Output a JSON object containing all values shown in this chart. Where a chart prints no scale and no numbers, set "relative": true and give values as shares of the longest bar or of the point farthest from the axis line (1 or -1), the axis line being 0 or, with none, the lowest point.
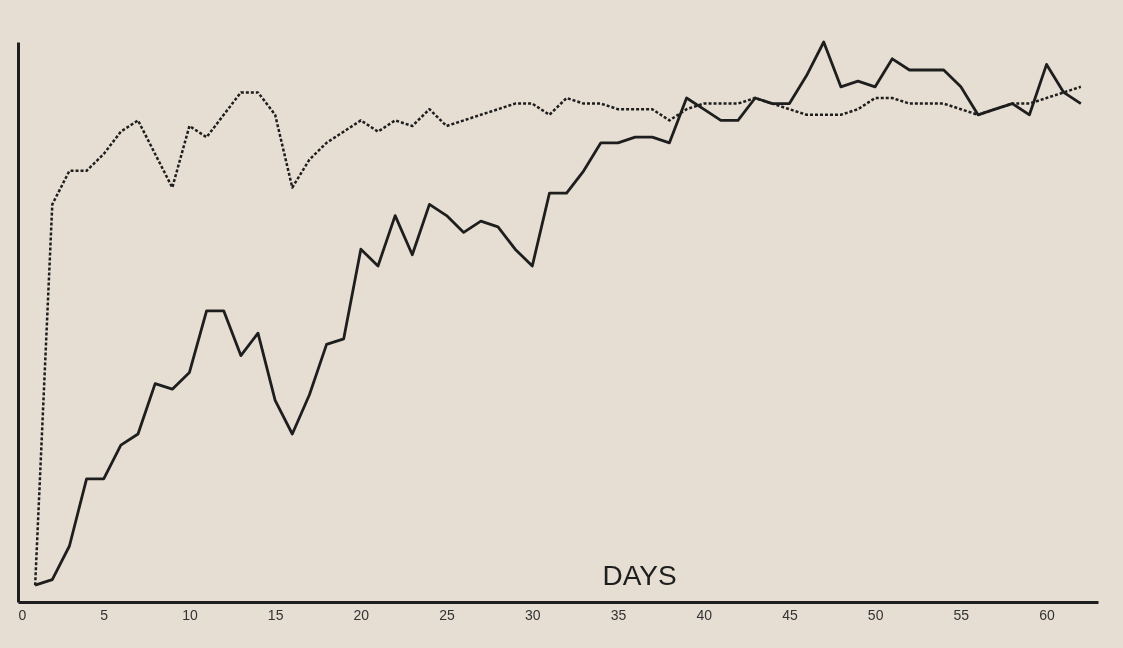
{
  "chart_data": {
    "type": "line",
    "xlabel": "DAYS",
    "relative": true,
    "tick_labels": "x",
    "grid": false,
    "marker": "none",
    "xlim": [
      0,
      63
    ],
    "xticks": [
      0,
      5,
      10,
      15,
      20,
      25,
      30,
      35,
      40,
      45,
      50,
      55,
      60
    ],
    "x": [
      1,
      2,
      3,
      4,
      5,
      6,
      7,
      8,
      9,
      10,
      11,
      12,
      13,
      14,
      15,
      16,
      17,
      18,
      19,
      20,
      21,
      22,
      23,
      24,
      25,
      26,
      27,
      28,
      29,
      30,
      31,
      32,
      33,
      34,
      35,
      36,
      37,
      38,
      39,
      40,
      41,
      42,
      43,
      44,
      45,
      46,
      47,
      48,
      49,
      50,
      51,
      52,
      53,
      54,
      55,
      56,
      57,
      58,
      59,
      60,
      61,
      62
    ],
    "series": [
      {
        "color": "#1e1e1e",
        "line_style": "solid",
        "values": [
          0.03,
          0.04,
          0.1,
          0.22,
          0.22,
          0.28,
          0.3,
          0.39,
          0.38,
          0.41,
          0.52,
          0.52,
          0.44,
          0.48,
          0.36,
          0.3,
          0.37,
          0.46,
          0.47,
          0.63,
          0.6,
          0.69,
          0.62,
          0.71,
          0.69,
          0.66,
          0.68,
          0.67,
          0.63,
          0.6,
          0.73,
          0.73,
          0.77,
          0.82,
          0.82,
          0.83,
          0.83,
          0.82,
          0.9,
          0.88,
          0.86,
          0.86,
          0.9,
          0.89,
          0.89,
          0.94,
          1,
          0.92,
          0.93,
          0.92,
          0.97,
          0.95,
          0.95,
          0.95,
          0.92,
          0.87,
          0.88,
          0.89,
          0.87,
          0.96,
          0.91,
          0.89
        ]
      },
      {
        "color": "#1e1e1e",
        "line_style": "dotted",
        "values": [
          0.03,
          0.71,
          0.77,
          0.77,
          0.8,
          0.84,
          0.86,
          0.8,
          0.74,
          0.85,
          0.83,
          0.87,
          0.91,
          0.91,
          0.87,
          0.74,
          0.79,
          0.82,
          0.84,
          0.86,
          0.84,
          0.86,
          0.85,
          0.88,
          0.85,
          0.86,
          0.87,
          0.88,
          0.89,
          0.89,
          0.87,
          0.9,
          0.89,
          0.89,
          0.88,
          0.88,
          0.88,
          0.86,
          0.88,
          0.89,
          0.89,
          0.89,
          0.9,
          0.89,
          0.88,
          0.87,
          0.87,
          0.87,
          0.88,
          0.9,
          0.9,
          0.89,
          0.89,
          0.89,
          0.88,
          0.87,
          0.88,
          0.89,
          0.89,
          0.9,
          0.91,
          0.92
        ]
      }
    ]
  }
}
